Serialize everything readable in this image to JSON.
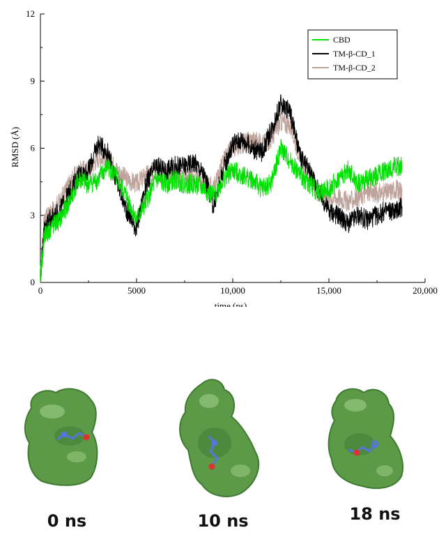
{
  "chart_data": {
    "type": "line",
    "xlabel": "time (ps)",
    "ylabel": "RMSD (Å)",
    "xlim": [
      0,
      20000
    ],
    "ylim": [
      0,
      12
    ],
    "xticks": [
      0,
      5000,
      10000,
      15000,
      20000
    ],
    "xtick_labels": [
      "0",
      "5000",
      "10,000",
      "15,000",
      "20,000"
    ],
    "yticks": [
      0,
      3,
      6,
      9,
      12
    ],
    "ytick_labels": [
      "0",
      "3",
      "6",
      "9",
      "12"
    ],
    "grid": false,
    "legend_position": "top-right",
    "series": [
      {
        "name": "CBD",
        "color": "#00e000",
        "x": [
          0,
          200,
          500,
          1000,
          1500,
          2000,
          2500,
          3000,
          3500,
          4000,
          4500,
          5000,
          5500,
          6000,
          6500,
          7000,
          7500,
          8000,
          8500,
          9000,
          9500,
          10000,
          10500,
          11000,
          11500,
          12000,
          12500,
          13000,
          13500,
          14000,
          14500,
          15000,
          15500,
          16000,
          16500,
          17000,
          17500,
          18000,
          18500,
          18800
        ],
        "values": [
          0.3,
          2.0,
          2.4,
          2.8,
          3.6,
          4.6,
          4.4,
          4.6,
          5.2,
          4.6,
          3.8,
          2.8,
          3.6,
          4.6,
          4.4,
          4.6,
          4.4,
          4.4,
          4.2,
          3.8,
          4.6,
          5.0,
          4.8,
          4.6,
          4.2,
          4.4,
          6.0,
          5.4,
          4.8,
          4.4,
          4.0,
          4.2,
          4.6,
          5.0,
          4.4,
          4.6,
          4.8,
          5.0,
          5.2,
          5.2
        ]
      },
      {
        "name": "TM-β-CD_1",
        "color": "#000000",
        "x": [
          0,
          200,
          500,
          1000,
          1500,
          2000,
          2500,
          3000,
          3500,
          4000,
          4500,
          5000,
          5500,
          6000,
          6500,
          7000,
          7500,
          8000,
          8500,
          9000,
          9500,
          10000,
          10500,
          11000,
          11500,
          12000,
          12500,
          13000,
          13500,
          14000,
          14500,
          15000,
          15500,
          16000,
          16500,
          17000,
          17500,
          18000,
          18500,
          18800
        ],
        "values": [
          0.3,
          2.4,
          2.8,
          3.2,
          4.0,
          4.8,
          5.0,
          6.2,
          5.8,
          4.4,
          3.2,
          2.4,
          4.4,
          5.2,
          5.0,
          5.2,
          5.2,
          5.4,
          4.8,
          3.4,
          5.0,
          6.2,
          6.4,
          6.0,
          5.8,
          6.8,
          8.0,
          7.6,
          5.6,
          5.0,
          4.0,
          3.2,
          3.0,
          2.6,
          3.0,
          2.8,
          3.0,
          3.2,
          3.2,
          3.4
        ]
      },
      {
        "name": "TM-β-CD_2",
        "color": "#bfa39b",
        "x": [
          0,
          200,
          500,
          1000,
          1500,
          2000,
          2500,
          3000,
          3500,
          4000,
          4500,
          5000,
          5500,
          6000,
          6500,
          7000,
          7500,
          8000,
          8500,
          9000,
          9500,
          10000,
          10500,
          11000,
          11500,
          12000,
          12500,
          13000,
          13500,
          14000,
          14500,
          15000,
          15500,
          16000,
          16500,
          17000,
          17500,
          18000,
          18500,
          18800
        ],
        "values": [
          0.3,
          2.8,
          3.0,
          3.6,
          4.4,
          5.0,
          5.0,
          5.6,
          5.6,
          5.0,
          4.6,
          4.4,
          4.8,
          5.0,
          4.8,
          4.8,
          4.8,
          4.8,
          4.6,
          4.2,
          5.4,
          6.0,
          6.2,
          6.4,
          6.2,
          6.4,
          7.2,
          7.0,
          5.6,
          4.6,
          4.0,
          3.8,
          3.8,
          3.6,
          3.8,
          4.0,
          4.0,
          4.0,
          4.2,
          4.0
        ]
      }
    ]
  },
  "snapshots": [
    {
      "label": "0 ns"
    },
    {
      "label": "10 ns"
    },
    {
      "label": "18 ns"
    }
  ],
  "colors": {
    "surface": "#5d9a48",
    "surface_dark": "#3e7a32",
    "surface_light": "#9fd08a",
    "ligand": "#5577dd"
  }
}
